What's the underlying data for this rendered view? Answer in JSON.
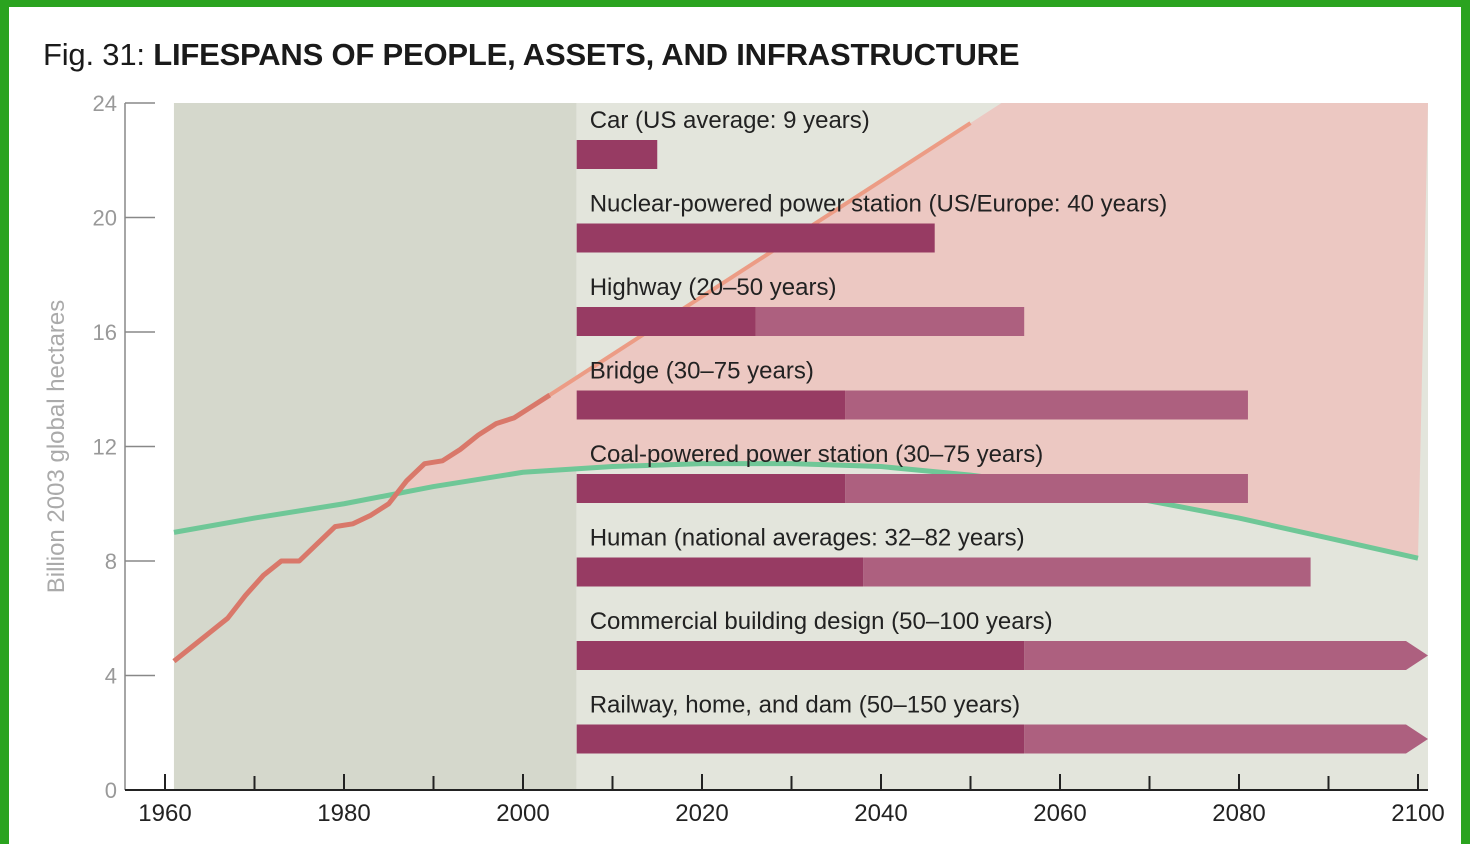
{
  "figure": {
    "title_prefix": "Fig. 31:",
    "title_main": "LIFESPANS OF PEOPLE, ASSETS, AND INFRASTRUCTURE"
  },
  "colors": {
    "frame_green": "#2aa31f",
    "history_bg": "#d5d8cc",
    "future_bg": "#e3e5dc",
    "overshoot_fill": "#ecc8c2",
    "footprint_line": "#d9786a",
    "footprint_projection": "#ec9c85",
    "biocapacity_line": "#6fc797",
    "bar_dark": "#973b63",
    "bar_light": "#ad607f"
  },
  "chart_data": {
    "type": "bar",
    "orientation": "horizontal",
    "title": "LIFESPANS OF PEOPLE, ASSETS, AND INFRASTRUCTURE",
    "ylabel": "Billion 2003 global hectares",
    "xlabel": "",
    "xlim": [
      1960,
      2100
    ],
    "ylim": [
      0,
      24
    ],
    "x_ticks": [
      1960,
      1980,
      2000,
      2020,
      2040,
      2060,
      2080,
      2100
    ],
    "y_ticks": [
      0,
      4,
      8,
      12,
      16,
      20,
      24
    ],
    "grid": false,
    "history_shading_end": 2006,
    "bars": [
      {
        "label": "Car (US average: 9 years)",
        "start": 2006,
        "min_end": 2015,
        "max_end": 2015,
        "extends_beyond": false
      },
      {
        "label": "Nuclear-powered power station (US/Europe: 40 years)",
        "start": 2006,
        "min_end": 2046,
        "max_end": 2046,
        "extends_beyond": false
      },
      {
        "label": "Highway (20–50 years)",
        "start": 2006,
        "min_end": 2026,
        "max_end": 2056,
        "extends_beyond": false
      },
      {
        "label": "Bridge (30–75 years)",
        "start": 2006,
        "min_end": 2036,
        "max_end": 2081,
        "extends_beyond": false
      },
      {
        "label": "Coal-powered power station (30–75 years)",
        "start": 2006,
        "min_end": 2036,
        "max_end": 2081,
        "extends_beyond": false
      },
      {
        "label": "Human (national averages: 32–82 years)",
        "start": 2006,
        "min_end": 2038,
        "max_end": 2088,
        "extends_beyond": false
      },
      {
        "label": "Commercial building design (50–100 years)",
        "start": 2006,
        "min_end": 2056,
        "max_end": 2100,
        "extends_beyond": true
      },
      {
        "label": "Railway, home, and dam (50–150 years)",
        "start": 2006,
        "min_end": 2056,
        "max_end": 2100,
        "extends_beyond": true
      }
    ],
    "lines": [
      {
        "role": "footprint",
        "x": [
          1961,
          1963,
          1965,
          1967,
          1969,
          1971,
          1973,
          1975,
          1977,
          1979,
          1981,
          1983,
          1985,
          1987,
          1989,
          1991,
          1993,
          1995,
          1997,
          1999,
          2001,
          2003
        ],
        "y": [
          4.5,
          5.0,
          5.5,
          6.0,
          6.8,
          7.5,
          8.0,
          8.0,
          8.6,
          9.2,
          9.3,
          9.6,
          10.0,
          10.8,
          11.4,
          11.5,
          11.9,
          12.4,
          12.8,
          13.0,
          13.4,
          13.8
        ]
      },
      {
        "role": "footprint-projection",
        "x": [
          2003,
          2050
        ],
        "y": [
          13.8,
          23.3
        ]
      },
      {
        "role": "biocapacity",
        "x": [
          1961,
          1970,
          1980,
          1990,
          2000,
          2010,
          2020,
          2030,
          2040,
          2050,
          2060,
          2070,
          2080,
          2090,
          2100
        ],
        "y": [
          9.0,
          9.5,
          10.0,
          10.6,
          11.1,
          11.3,
          11.4,
          11.4,
          11.3,
          11.0,
          10.6,
          10.1,
          9.5,
          8.8,
          8.1
        ]
      }
    ]
  }
}
